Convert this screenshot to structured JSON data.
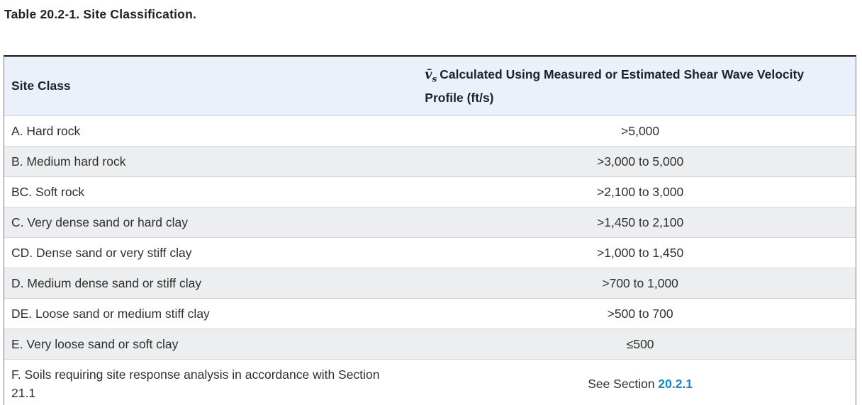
{
  "caption": "Table 20.2-1. Site Classification.",
  "colors": {
    "header_bg": "#eaf1fa",
    "alt_row_bg": "#eceef0",
    "border_dark": "#141414",
    "border_side": "#777b7f",
    "link_blue": "#1787c9"
  },
  "table": {
    "header": {
      "col1": "Site Class",
      "symbol": "v̄",
      "symbol_sub": "s",
      "col2": "Calculated Using Measured or Estimated Shear Wave Velocity Profile (ft/s)"
    },
    "rows": [
      {
        "site_class": "A. Hard rock",
        "value": ">5,000"
      },
      {
        "site_class": "B. Medium hard rock",
        "value": ">3,000 to 5,000"
      },
      {
        "site_class": "BC. Soft rock",
        "value": ">2,100 to 3,000"
      },
      {
        "site_class": "C. Very dense sand or hard clay",
        "value": ">1,450 to 2,100"
      },
      {
        "site_class": "CD. Dense sand or very stiff clay",
        "value": ">1,000 to 1,450"
      },
      {
        "site_class": "D. Medium dense sand or stiff clay",
        "value": ">700 to 1,000"
      },
      {
        "site_class": "DE. Loose sand or medium stiff clay",
        "value": ">500 to 700"
      },
      {
        "site_class": "E. Very loose sand or soft clay",
        "value": "≤500"
      },
      {
        "site_class": "F. Soils requiring site response analysis in accordance with Section 21.1",
        "value": "See Section ",
        "value_link": "20.2.1"
      }
    ]
  }
}
